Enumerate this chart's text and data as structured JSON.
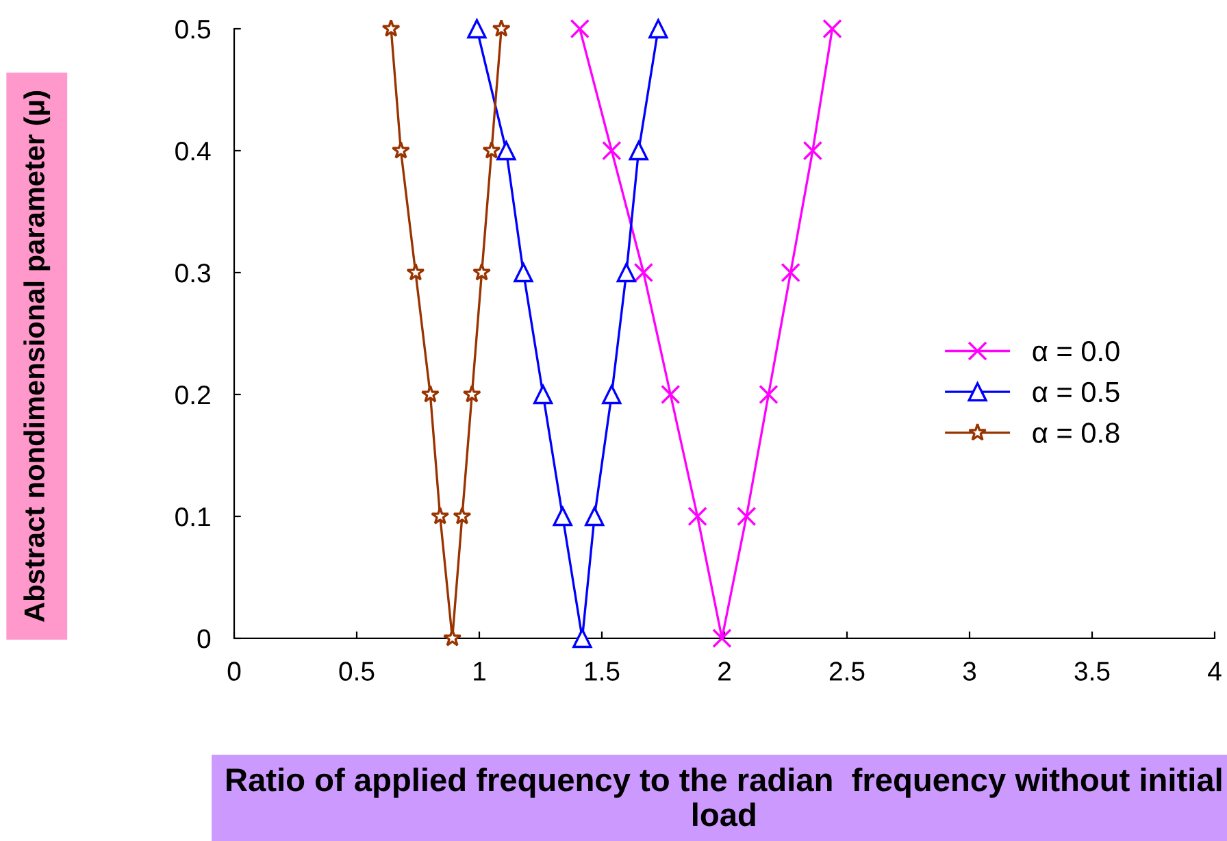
{
  "chart_data": {
    "type": "line",
    "xlabel": "Ratio of applied frequency to the radian  frequency without initial load",
    "ylabel": "Abstract nondimensional parameter (μ)",
    "xlim": [
      0,
      4
    ],
    "xticks": [
      0,
      0.5,
      1,
      1.5,
      2,
      2.5,
      3,
      3.5,
      4
    ],
    "ylim": [
      0,
      0.5
    ],
    "yticks": [
      0,
      0.1,
      0.2,
      0.3,
      0.4,
      0.5
    ],
    "grid": false,
    "legend": "right",
    "series": [
      {
        "name": "α = 0.0",
        "color": "#ff00ff",
        "marker": "cross",
        "x": [
          1.41,
          1.54,
          1.67,
          1.78,
          1.89,
          1.99,
          2.09,
          2.18,
          2.27,
          2.36,
          2.44
        ],
        "values": [
          0.5,
          0.4,
          0.3,
          0.2,
          0.1,
          0,
          0.1,
          0.2,
          0.3,
          0.4,
          0.5
        ]
      },
      {
        "name": "α = 0.5",
        "color": "#0000ff",
        "marker": "triangle",
        "x": [
          0.99,
          1.11,
          1.18,
          1.26,
          1.34,
          1.42,
          1.47,
          1.54,
          1.6,
          1.65,
          1.73
        ],
        "values": [
          0.5,
          0.4,
          0.3,
          0.2,
          0.1,
          0,
          0.1,
          0.2,
          0.3,
          0.4,
          0.5
        ]
      },
      {
        "name": "α = 0.8",
        "color": "#993300",
        "marker": "star",
        "x": [
          0.64,
          0.68,
          0.74,
          0.8,
          0.84,
          0.89,
          0.93,
          0.97,
          1.01,
          1.05,
          1.09
        ],
        "values": [
          0.5,
          0.4,
          0.3,
          0.2,
          0.1,
          0,
          0.1,
          0.2,
          0.3,
          0.4,
          0.5
        ]
      }
    ]
  }
}
